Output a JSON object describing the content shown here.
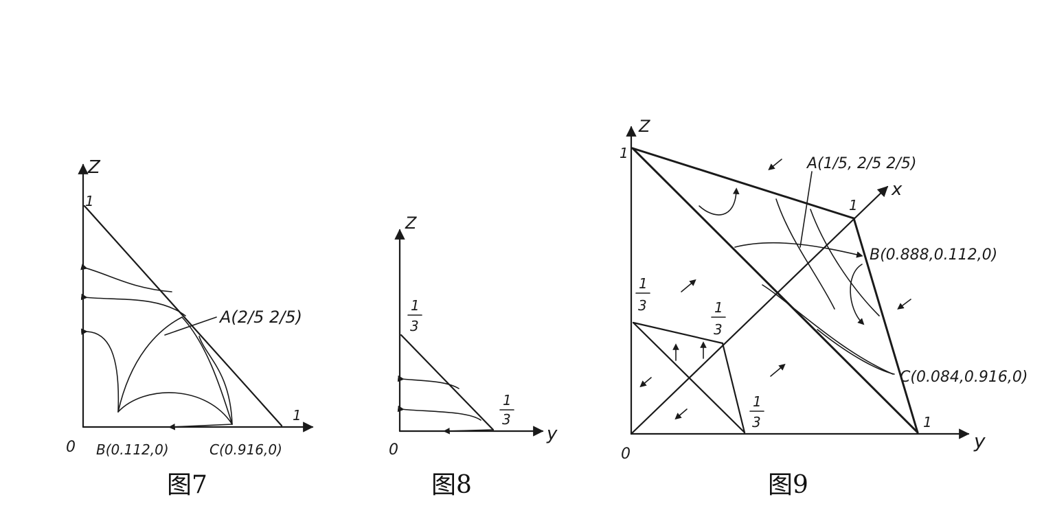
{
  "figures": [
    {
      "caption": "图7",
      "axis_z": "Z",
      "axis_y": "",
      "origin": "0",
      "tick_z": "1",
      "tick_y": "1",
      "point_a": "A(2/5  2/5)",
      "point_b": "B(0.112,0)",
      "point_c": "C(0.916,0)"
    },
    {
      "caption": "图8",
      "axis_z": "Z",
      "axis_y": "y",
      "origin": "0",
      "tick_z_num": "1",
      "tick_z_den": "3",
      "tick_y_num": "1",
      "tick_y_den": "3"
    },
    {
      "caption": "图9",
      "axis_z": "Z",
      "axis_y": "y",
      "axis_x": "x",
      "origin": "0",
      "tick_z": "1",
      "tick_y": "1",
      "tick_x": "1",
      "third_z_num": "1",
      "third_z_den": "3",
      "third_x_num": "1",
      "third_x_den": "3",
      "third_y_num": "1",
      "third_y_den": "3",
      "point_a": "A(1/5, 2/5  2/5)",
      "point_b": "B(0.888,0.112,0)",
      "point_c": "C(0.084,0.916,0)"
    }
  ]
}
